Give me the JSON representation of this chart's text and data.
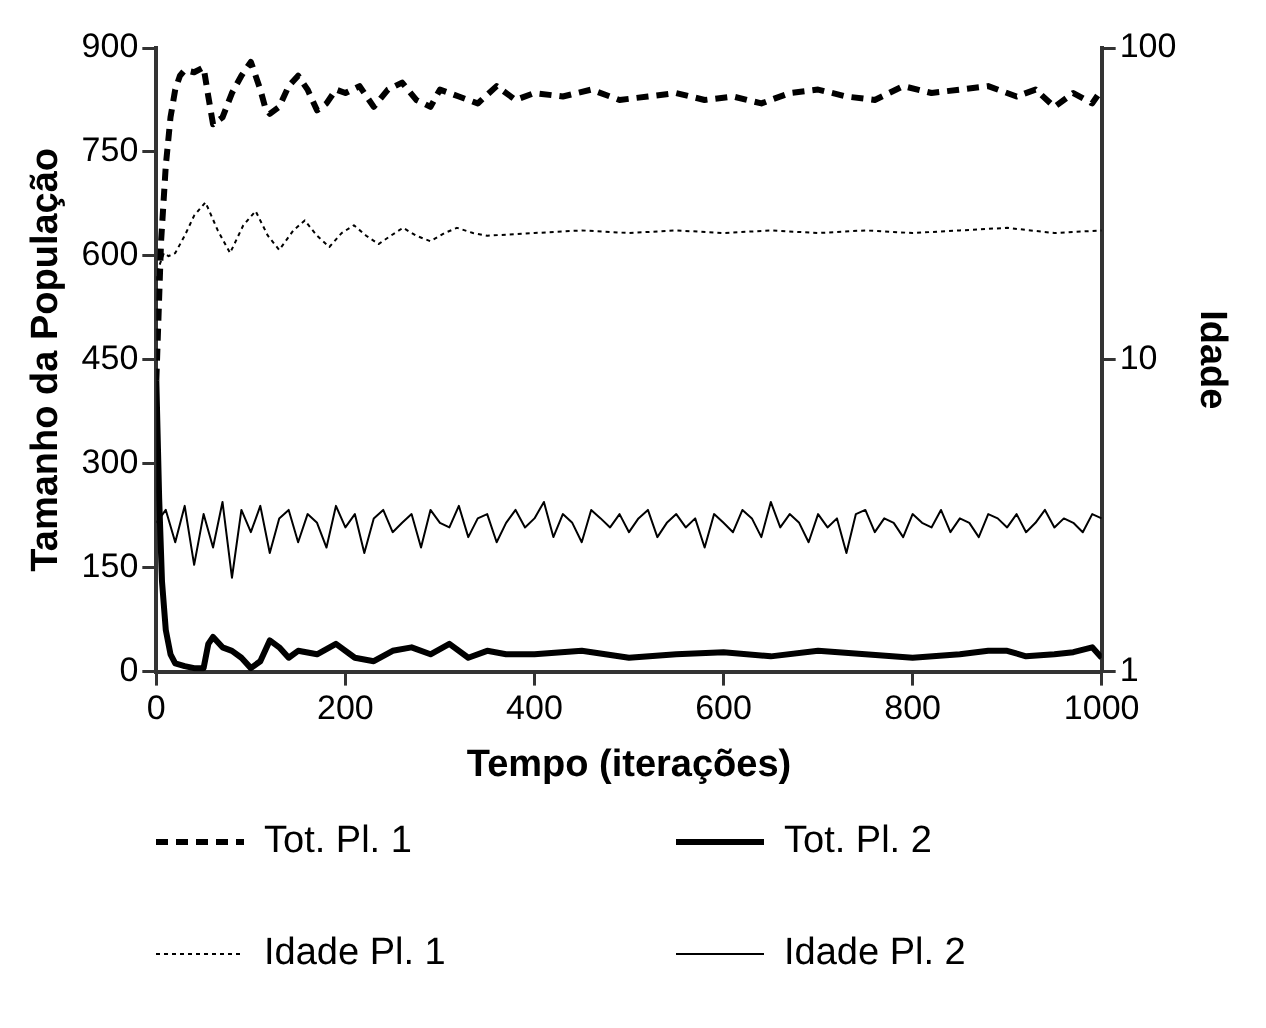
{
  "chart_data": {
    "type": "line",
    "xlabel": "Tempo (iterações)",
    "ylabel": "Tamanho da População",
    "y2label": "Idade",
    "xlim": [
      0,
      1000
    ],
    "xticks": [
      0,
      200,
      400,
      600,
      800,
      1000
    ],
    "ylim": [
      0,
      900
    ],
    "yticks": [
      0,
      150,
      300,
      450,
      600,
      750,
      900
    ],
    "y2lim": [
      1,
      100
    ],
    "y2ticks": [
      1,
      10,
      100
    ],
    "log": "y2",
    "grid": false,
    "legend": "bottom",
    "marker": "none",
    "series": [
      {
        "name": "Tot. Pl. 1",
        "color": "#000000",
        "line_style": "dashed",
        "x": [
          0,
          5,
          10,
          15,
          20,
          25,
          30,
          40,
          50,
          55,
          60,
          70,
          80,
          90,
          100,
          110,
          115,
          120,
          130,
          140,
          150,
          160,
          170,
          180,
          190,
          200,
          215,
          230,
          245,
          260,
          275,
          290,
          300,
          320,
          340,
          360,
          380,
          400,
          430,
          460,
          490,
          520,
          550,
          580,
          610,
          640,
          670,
          700,
          730,
          760,
          790,
          820,
          850,
          880,
          910,
          930,
          950,
          970,
          990,
          1000
        ],
        "values": [
          420,
          620,
          730,
          800,
          840,
          860,
          868,
          865,
          872,
          830,
          790,
          800,
          835,
          860,
          880,
          840,
          815,
          805,
          815,
          845,
          860,
          840,
          810,
          820,
          840,
          835,
          845,
          815,
          840,
          850,
          825,
          815,
          840,
          830,
          820,
          845,
          825,
          835,
          830,
          840,
          825,
          830,
          835,
          825,
          830,
          820,
          835,
          840,
          830,
          825,
          845,
          835,
          840,
          845,
          830,
          840,
          815,
          835,
          820,
          840
        ]
      },
      {
        "name": "Tot. Pl. 2",
        "color": "#000000",
        "line_style": "solid",
        "x": [
          0,
          3,
          6,
          10,
          15,
          20,
          30,
          40,
          50,
          55,
          60,
          70,
          80,
          90,
          100,
          110,
          120,
          130,
          140,
          150,
          170,
          190,
          210,
          230,
          250,
          270,
          290,
          310,
          330,
          350,
          370,
          400,
          450,
          500,
          550,
          600,
          650,
          700,
          750,
          800,
          850,
          880,
          900,
          920,
          950,
          970,
          990,
          1000
        ],
        "values": [
          420,
          250,
          130,
          60,
          25,
          12,
          8,
          5,
          5,
          40,
          50,
          35,
          30,
          20,
          5,
          15,
          45,
          35,
          20,
          30,
          25,
          40,
          20,
          15,
          30,
          35,
          25,
          40,
          20,
          30,
          25,
          25,
          30,
          20,
          25,
          28,
          22,
          30,
          25,
          20,
          25,
          30,
          30,
          22,
          25,
          28,
          35,
          20
        ]
      },
      {
        "name": "Idade Pl. 1",
        "color": "#000000",
        "line_style": "dotted",
        "axis": "y2",
        "x": [
          0,
          3,
          8,
          13,
          20,
          30,
          40,
          52,
          65,
          78,
          92,
          105,
          118,
          130,
          145,
          157,
          170,
          183,
          196,
          209,
          222,
          235,
          248,
          261,
          275,
          290,
          305,
          318,
          335,
          350,
          400,
          450,
          500,
          550,
          600,
          650,
          700,
          750,
          800,
          850,
          900,
          950,
          1000
        ],
        "values": [
          18,
          20,
          22,
          21.5,
          22,
          25,
          29,
          32,
          26,
          22,
          27,
          30,
          25,
          22.5,
          26,
          28,
          25,
          23,
          25.5,
          27,
          25,
          23.5,
          25,
          26.5,
          25,
          24,
          25.5,
          26.5,
          25.5,
          25,
          25.5,
          26,
          25.5,
          26,
          25.5,
          26,
          25.5,
          26,
          25.5,
          26,
          26.5,
          25.5,
          26
        ]
      },
      {
        "name": "Idade Pl. 2",
        "color": "#000000",
        "line_style": "solid",
        "axis": "y2",
        "x": [
          0,
          10,
          20,
          30,
          40,
          50,
          60,
          70,
          80,
          90,
          100,
          110,
          120,
          130,
          140,
          150,
          160,
          170,
          180,
          190,
          200,
          210,
          220,
          230,
          240,
          250,
          260,
          270,
          280,
          290,
          300,
          310,
          320,
          330,
          340,
          350,
          360,
          370,
          380,
          390,
          400,
          410,
          420,
          430,
          440,
          450,
          460,
          470,
          480,
          490,
          500,
          510,
          520,
          530,
          540,
          550,
          560,
          570,
          580,
          590,
          600,
          610,
          620,
          630,
          640,
          650,
          660,
          670,
          680,
          690,
          700,
          710,
          720,
          730,
          740,
          750,
          760,
          770,
          780,
          790,
          800,
          810,
          820,
          830,
          840,
          850,
          860,
          870,
          880,
          890,
          900,
          910,
          920,
          930,
          940,
          950,
          960,
          970,
          980,
          990,
          1000
        ],
        "values": [
          3.0,
          3.3,
          2.6,
          3.4,
          2.2,
          3.2,
          2.5,
          3.5,
          2.0,
          3.3,
          2.8,
          3.4,
          2.4,
          3.1,
          3.3,
          2.6,
          3.2,
          3.0,
          2.5,
          3.4,
          2.9,
          3.2,
          2.4,
          3.1,
          3.3,
          2.8,
          3.0,
          3.2,
          2.5,
          3.3,
          3.0,
          2.9,
          3.4,
          2.7,
          3.1,
          3.2,
          2.6,
          3.0,
          3.3,
          2.9,
          3.1,
          3.5,
          2.7,
          3.2,
          3.0,
          2.6,
          3.3,
          3.1,
          2.9,
          3.2,
          2.8,
          3.1,
          3.3,
          2.7,
          3.0,
          3.2,
          2.9,
          3.1,
          2.5,
          3.2,
          3.0,
          2.8,
          3.3,
          3.1,
          2.7,
          3.5,
          2.9,
          3.2,
          3.0,
          2.6,
          3.2,
          2.9,
          3.1,
          2.4,
          3.2,
          3.3,
          2.8,
          3.1,
          3.0,
          2.7,
          3.2,
          3.0,
          2.9,
          3.3,
          2.8,
          3.1,
          3.0,
          2.7,
          3.2,
          3.1,
          2.9,
          3.2,
          2.8,
          3.0,
          3.3,
          2.9,
          3.1,
          3.0,
          2.8,
          3.2,
          3.1
        ]
      }
    ]
  }
}
